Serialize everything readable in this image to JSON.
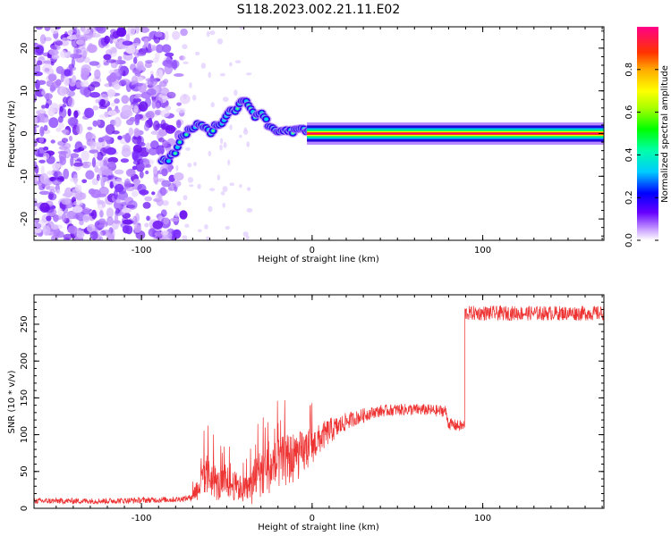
{
  "title": "S118.2023.002.21.11.E02",
  "chart_data": [
    {
      "type": "heatmap",
      "title": "",
      "xlabel": "Height of straight line (km)",
      "ylabel": "Frequency (Hz)",
      "xlim": [
        -163,
        171
      ],
      "ylim": [
        -25,
        25
      ],
      "xticks": [
        -100,
        0,
        100
      ],
      "yticks": [
        -20,
        -10,
        0,
        10,
        20
      ],
      "grid": false,
      "description_points": {
        "ridge_x": [
          -88,
          -84,
          -80,
          -76,
          -72,
          -68,
          -64,
          -60,
          -56,
          -52,
          -48,
          -44,
          -42,
          -40,
          -38,
          -36,
          -34,
          -32,
          -30,
          -28,
          -26,
          -24,
          -22,
          -20,
          -18,
          -16,
          -14,
          -12,
          -10,
          -8,
          -6,
          -4,
          -2,
          0,
          5,
          10,
          40,
          80,
          120,
          171
        ],
        "ridge_y": [
          -6,
          -6,
          -4,
          -1,
          1,
          2,
          2,
          0,
          2,
          3,
          5,
          6,
          7.5,
          8,
          7,
          6,
          4,
          4.5,
          5,
          4,
          2,
          1,
          1,
          0.5,
          1,
          0.5,
          0,
          0.5,
          1,
          0.5,
          1,
          0.7,
          0.5,
          0.3,
          0,
          0,
          0,
          0,
          0,
          0
        ]
      },
      "colorbar": {
        "label": "Normalized spectral amplitude",
        "range": [
          0,
          1
        ],
        "ticks": [
          "0.0",
          "0.2",
          "0.4",
          "0.6",
          "0.8"
        ]
      }
    },
    {
      "type": "line",
      "title": "",
      "xlabel": "Height of straight line (km)",
      "ylabel": "SNR (10 * v/v)",
      "xlim": [
        -163,
        171
      ],
      "ylim": [
        0,
        290
      ],
      "xticks": [
        -100,
        0,
        100
      ],
      "yticks": [
        0,
        50,
        100,
        150,
        200,
        250
      ],
      "grid": false,
      "color": "#ee3333",
      "series": [
        {
          "x": [
            -163,
            -140,
            -120,
            -100,
            -80,
            -72,
            -66,
            -62,
            -58,
            -55,
            -50,
            -45,
            -40,
            -35,
            -30,
            -25,
            -20,
            -15,
            -10,
            -5,
            0,
            5,
            10,
            15,
            20,
            25,
            30,
            35,
            40,
            45,
            50,
            55,
            60,
            65,
            70,
            75,
            78,
            80,
            85,
            89,
            90,
            95,
            100,
            120,
            140,
            160,
            171
          ],
          "y": [
            10,
            10,
            10,
            11,
            12,
            14,
            30,
            45,
            40,
            30,
            35,
            30,
            25,
            30,
            50,
            55,
            60,
            65,
            70,
            75,
            85,
            95,
            105,
            110,
            118,
            122,
            126,
            130,
            132,
            133,
            134,
            134,
            134,
            134,
            133,
            132,
            133,
            115,
            112,
            112,
            265,
            265,
            265,
            265,
            265,
            265,
            265
          ],
          "noise": [
            4,
            4,
            4,
            4,
            4,
            4,
            20,
            30,
            25,
            22,
            22,
            20,
            18,
            25,
            35,
            35,
            35,
            35,
            35,
            30,
            25,
            20,
            18,
            15,
            12,
            10,
            10,
            8,
            8,
            8,
            8,
            8,
            8,
            8,
            8,
            8,
            8,
            8,
            8,
            8,
            10,
            10,
            10,
            10,
            10,
            10,
            10
          ]
        }
      ]
    }
  ]
}
